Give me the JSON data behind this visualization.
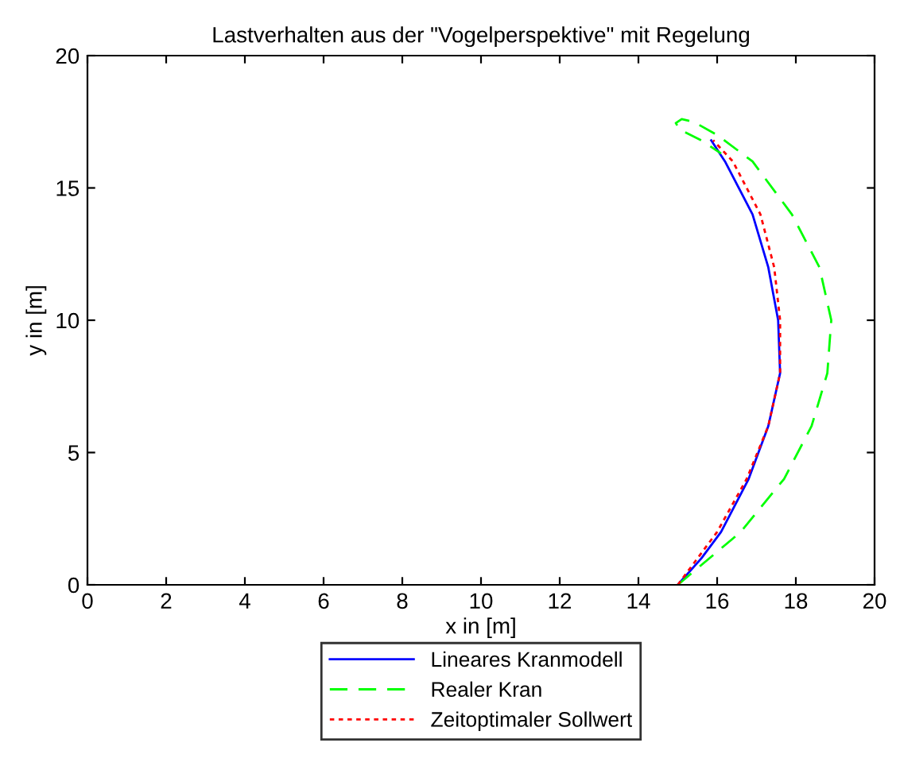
{
  "chart_data": {
    "type": "line",
    "title": "Lastverhalten aus der \"Vogelperspektive\" mit Regelung",
    "xlabel": "x in [m]",
    "ylabel": "y in [m]",
    "xlim": [
      0,
      20
    ],
    "ylim": [
      0,
      20
    ],
    "xticks": [
      0,
      2,
      4,
      6,
      8,
      10,
      12,
      14,
      16,
      18,
      20
    ],
    "yticks": [
      0,
      5,
      10,
      15,
      20
    ],
    "grid": false,
    "legend": "bottom",
    "series": [
      {
        "name": "Lineares Kranmodell",
        "color": "#0000ff",
        "line_style": "solid",
        "x": [
          15.0,
          15.6,
          16.1,
          16.8,
          17.3,
          17.6,
          17.55,
          17.3,
          16.9,
          16.2,
          15.85
        ],
        "values": [
          0,
          1,
          2,
          4,
          6,
          8,
          10,
          12,
          14,
          16,
          16.8
        ]
      },
      {
        "name": "Realer Kran",
        "color": "#00ff00",
        "line_style": "dashed",
        "x": [
          15.0,
          15.8,
          16.6,
          17.7,
          18.4,
          18.8,
          18.9,
          18.6,
          17.9,
          16.9,
          16.0,
          15.4,
          15.1,
          14.95,
          15.05,
          15.6,
          16.1
        ],
        "values": [
          0,
          1,
          2,
          4,
          6,
          8,
          10,
          12,
          14,
          16,
          17.0,
          17.5,
          17.6,
          17.45,
          17.2,
          16.8,
          16.3
        ]
      },
      {
        "name": "Zeitoptimaler Sollwert",
        "color": "#ff0000",
        "line_style": "dotted",
        "x": [
          15.0,
          16.0,
          16.75,
          17.3,
          17.6,
          17.6,
          17.45,
          17.1,
          16.4,
          15.9
        ],
        "values": [
          0,
          2,
          4,
          6,
          8,
          10,
          12,
          14,
          16,
          16.8
        ]
      }
    ]
  }
}
